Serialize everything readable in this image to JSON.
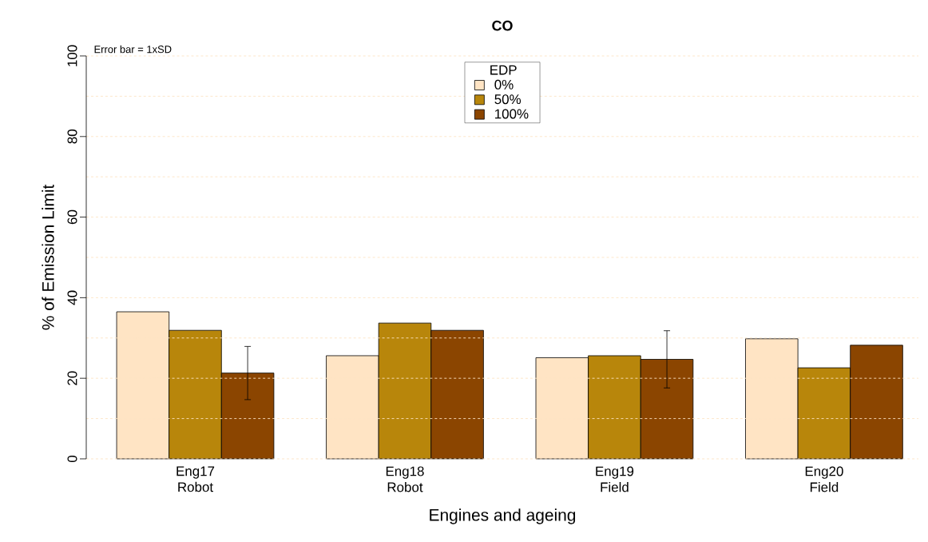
{
  "chart_data": {
    "type": "bar",
    "title": "CO",
    "xlabel": "Engines and ageing",
    "ylabel": "% of Emission Limit",
    "legend_title": "EDP",
    "annotations": [
      "Error bar = 1xSD"
    ],
    "categories": [
      "Eng17 Robot",
      "Eng18 Robot",
      "Eng19 Field",
      "Eng20 Field"
    ],
    "series": [
      {
        "name": "0%",
        "color": "#ffe4c4",
        "values": [
          36.5,
          25.6,
          25.1,
          29.8
        ]
      },
      {
        "name": "50%",
        "color": "#b8860b",
        "values": [
          31.9,
          33.7,
          25.6,
          22.6
        ]
      },
      {
        "name": "100%",
        "color": "#8b4500",
        "values": [
          21.3,
          31.9,
          24.7,
          28.2
        ],
        "errors": [
          6.6,
          null,
          7.1,
          null
        ]
      }
    ],
    "ylim": [
      0,
      100
    ],
    "yticks": [
      0,
      {
        "value": 10,
        "label": null
      },
      20,
      {
        "value": 30,
        "label": null
      },
      40,
      {
        "value": 50,
        "label": null
      },
      60,
      {
        "value": 70,
        "label": null
      },
      80,
      {
        "value": 90,
        "label": null
      },
      100
    ],
    "grid": "y",
    "legend": "top"
  }
}
